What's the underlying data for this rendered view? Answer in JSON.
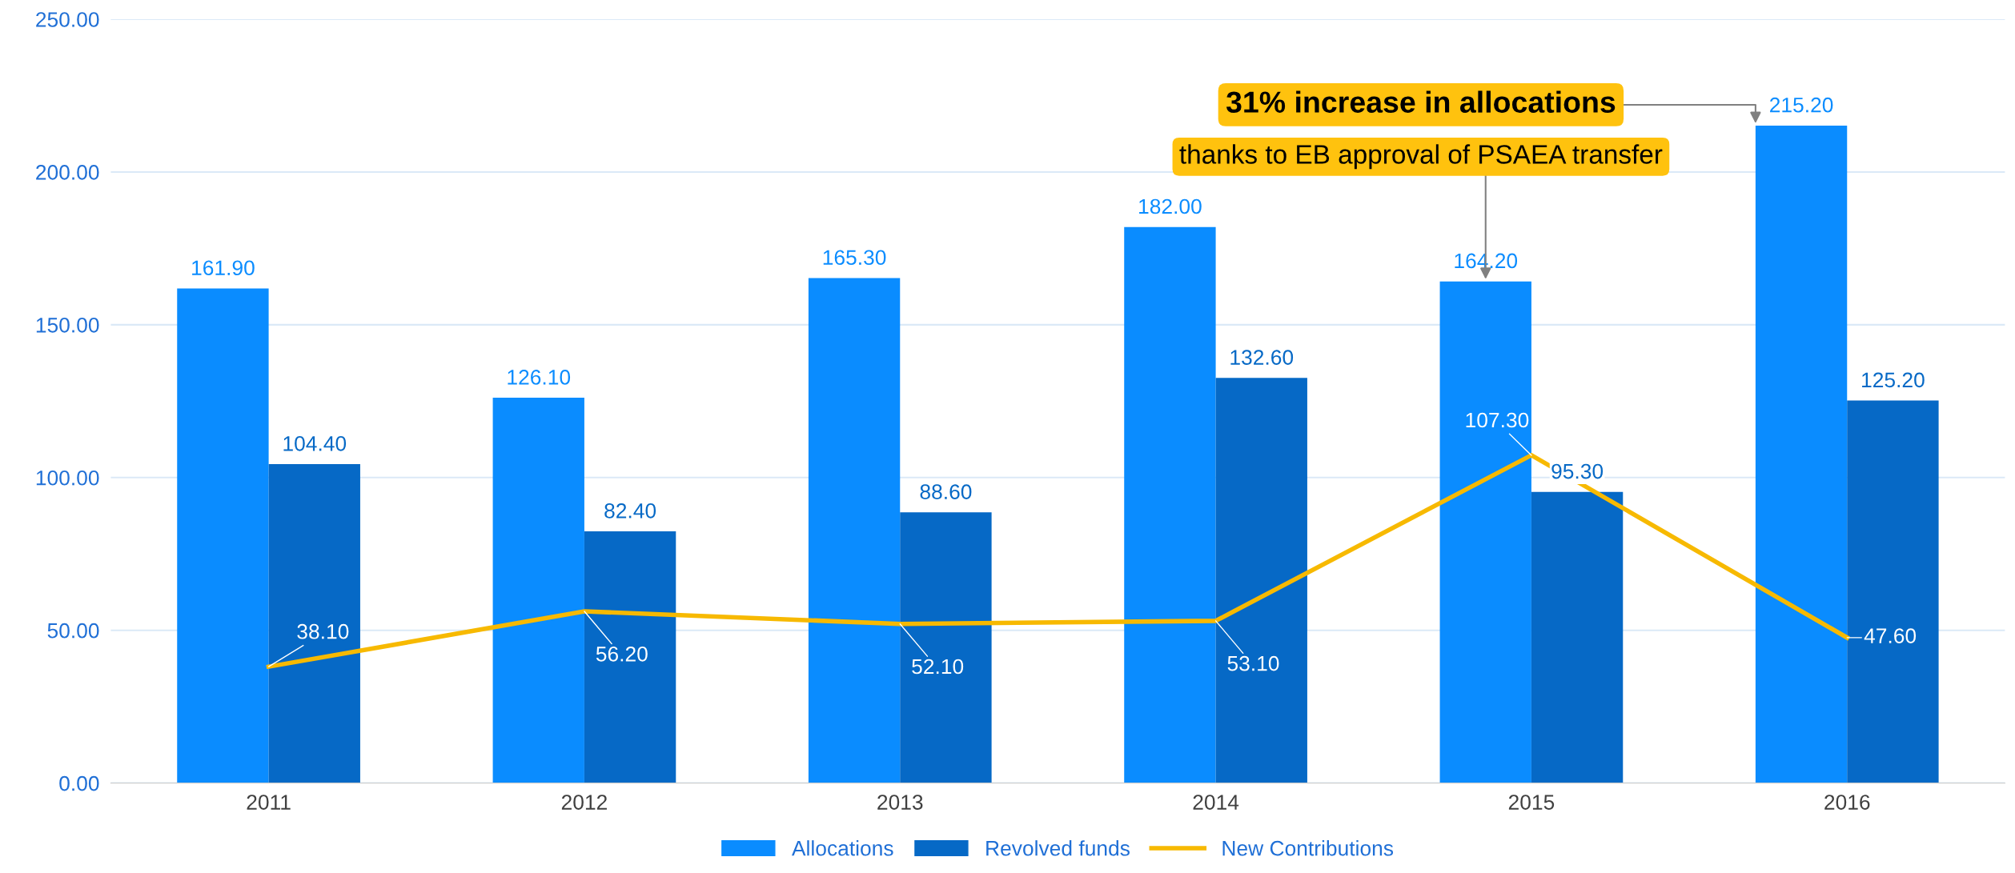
{
  "chart_data": {
    "type": "bar",
    "categories": [
      "2011",
      "2012",
      "2013",
      "2014",
      "2015",
      "2016"
    ],
    "series": [
      {
        "name": "Allocations",
        "color": "#0a8cff",
        "values": [
          161.9,
          126.1,
          165.3,
          182.0,
          164.2,
          215.2
        ],
        "value_labels": [
          "161.90",
          "126.10",
          "165.30",
          "182.00",
          "164.20",
          "215.20"
        ]
      },
      {
        "name": "Revolved funds",
        "color": "#0669c6",
        "values": [
          104.4,
          82.4,
          88.6,
          132.6,
          95.3,
          125.2
        ],
        "value_labels": [
          "104.40",
          "82.40",
          "88.60",
          "132.60",
          "95.30",
          "125.20"
        ]
      },
      {
        "name": "New Contributions",
        "type": "line",
        "color": "#f7b900",
        "values": [
          38.1,
          56.2,
          52.1,
          53.1,
          107.3,
          47.6
        ],
        "value_labels": [
          "38.10",
          "56.20",
          "52.10",
          "53.10",
          "107.30",
          "47.60"
        ]
      }
    ],
    "annotations": [
      "31% increase in allocations",
      "thanks to EB approval of PSAEA transfer"
    ],
    "ylim": [
      0,
      250
    ],
    "yticks": [
      {
        "value": 0,
        "label": "0.00"
      },
      {
        "value": 50,
        "label": "50.00"
      },
      {
        "value": 100,
        "label": "100.00"
      },
      {
        "value": 150,
        "label": "150.00"
      },
      {
        "value": 200,
        "label": "200.00"
      },
      {
        "value": 250,
        "label": "250.00"
      }
    ],
    "grid": "y",
    "legend": "bottom",
    "marker": "none",
    "line_style": "solid"
  }
}
